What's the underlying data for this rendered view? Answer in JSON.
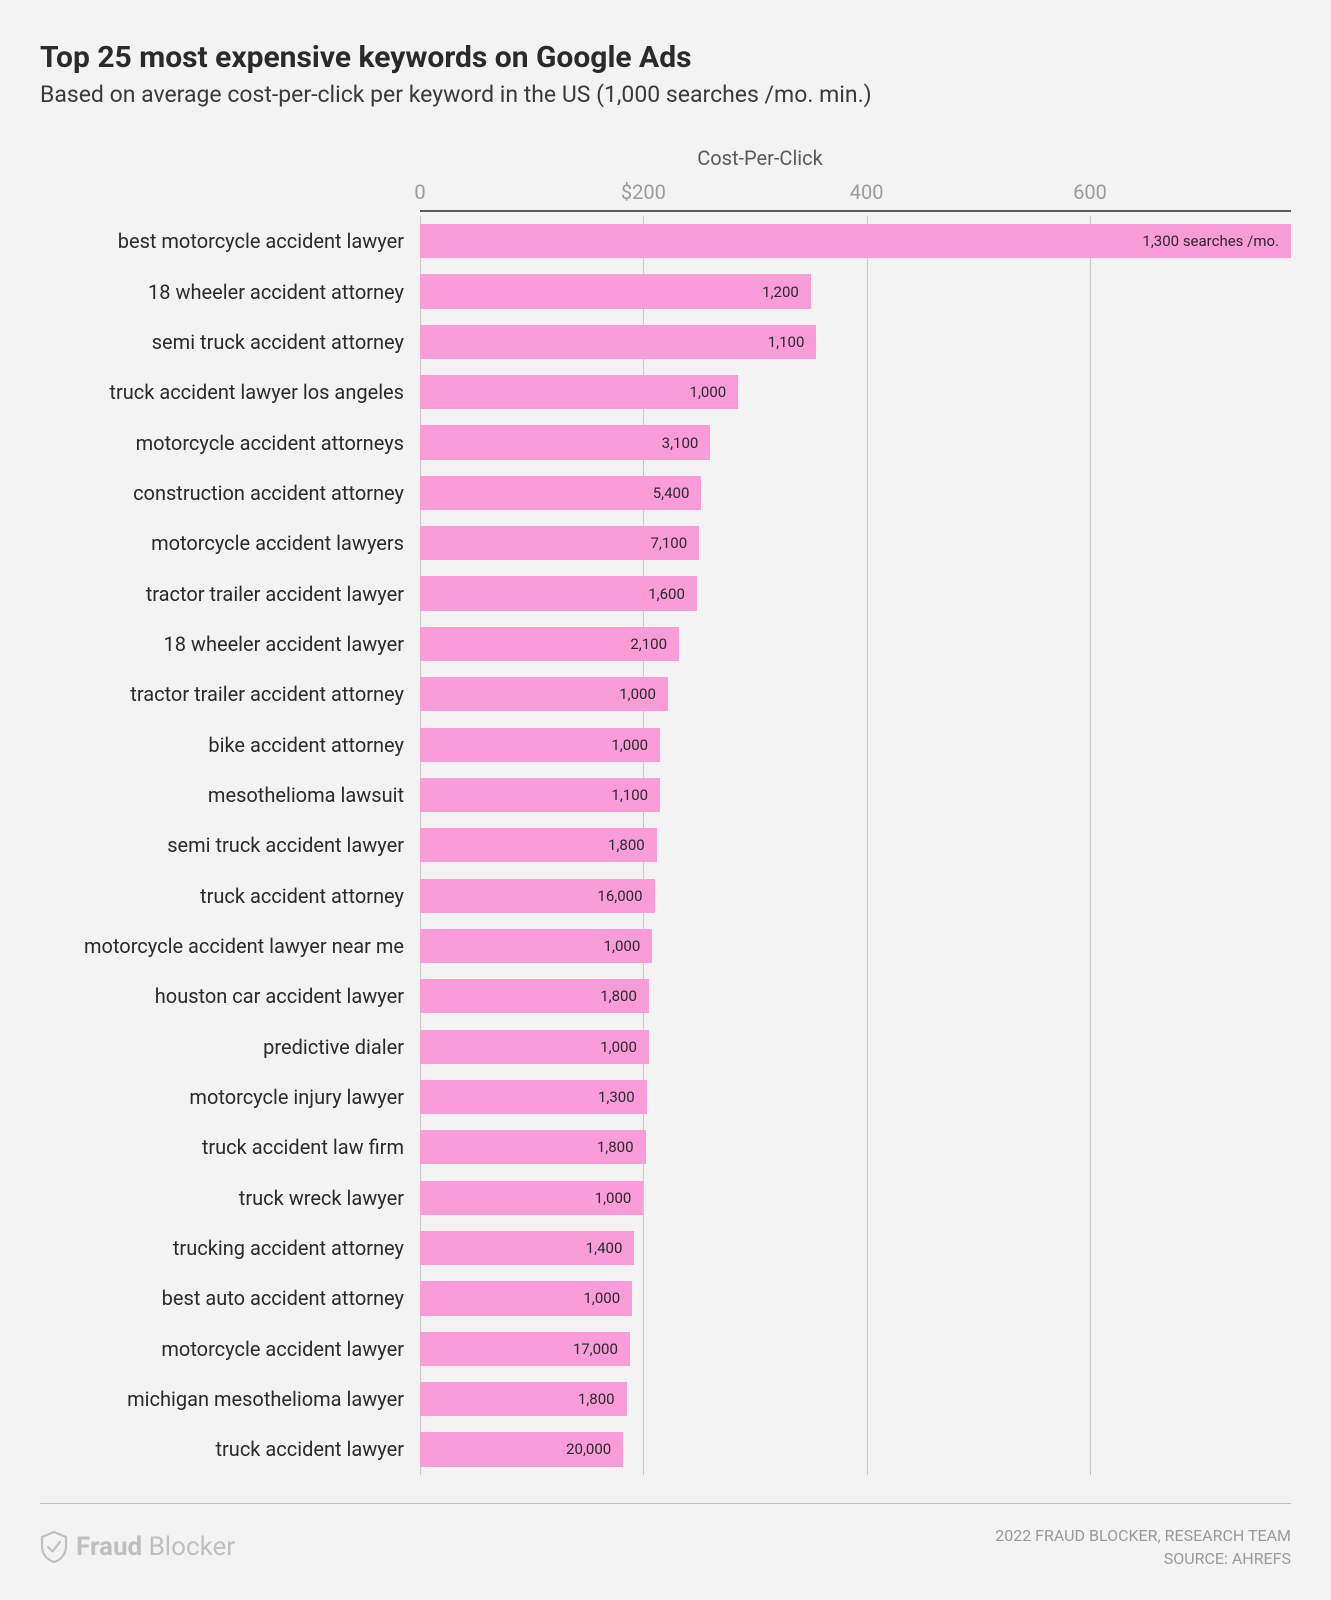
{
  "title": "Top 25 most expensive keywords on Google Ads",
  "subtitle": "Based on average cost-per-click per keyword in the US (1,000 searches /mo. min.)",
  "chart": {
    "type": "bar-horizontal",
    "axis_title": "Cost-Per-Click",
    "xlim": [
      0,
      780
    ],
    "ticks": [
      {
        "value": 0,
        "label": "0"
      },
      {
        "value": 200,
        "label": "$200"
      },
      {
        "value": 400,
        "label": "400"
      },
      {
        "value": 600,
        "label": "600"
      }
    ],
    "bar_color": "#f99cd8",
    "gridline_color": "#c8c8c8",
    "axis_line_color": "#5a5a5a",
    "bar_label_fontsize": 15,
    "bar_label_color": "#2a2a2a",
    "row_label_fontsize": 20,
    "row_label_color": "#2a2a2a",
    "first_bar_suffix": " searches /mo.",
    "rows": [
      {
        "label": "best motorcycle accident lawyer",
        "value": 780,
        "searches": "1,300"
      },
      {
        "label": "18 wheeler accident attorney",
        "value": 350,
        "searches": "1,200"
      },
      {
        "label": "semi truck accident attorney",
        "value": 355,
        "searches": "1,100"
      },
      {
        "label": "truck accident lawyer los angeles",
        "value": 285,
        "searches": "1,000"
      },
      {
        "label": "motorcycle accident attorneys",
        "value": 260,
        "searches": "3,100"
      },
      {
        "label": "construction accident attorney",
        "value": 252,
        "searches": "5,400"
      },
      {
        "label": "motorcycle accident lawyers",
        "value": 250,
        "searches": "7,100"
      },
      {
        "label": "tractor trailer accident lawyer",
        "value": 248,
        "searches": "1,600"
      },
      {
        "label": "18 wheeler accident lawyer",
        "value": 232,
        "searches": "2,100"
      },
      {
        "label": "tractor trailer accident attorney",
        "value": 222,
        "searches": "1,000"
      },
      {
        "label": "bike accident attorney",
        "value": 215,
        "searches": "1,000"
      },
      {
        "label": "mesothelioma lawsuit",
        "value": 215,
        "searches": "1,100"
      },
      {
        "label": "semi truck accident lawyer",
        "value": 212,
        "searches": "1,800"
      },
      {
        "label": "truck accident attorney",
        "value": 210,
        "searches": "16,000"
      },
      {
        "label": "motorcycle accident lawyer near me",
        "value": 208,
        "searches": "1,000"
      },
      {
        "label": "houston car accident lawyer",
        "value": 205,
        "searches": "1,800"
      },
      {
        "label": "predictive dialer",
        "value": 205,
        "searches": "1,000"
      },
      {
        "label": "motorcycle injury lawyer",
        "value": 203,
        "searches": "1,300"
      },
      {
        "label": "truck accident law firm",
        "value": 202,
        "searches": "1,800"
      },
      {
        "label": "truck wreck lawyer",
        "value": 200,
        "searches": "1,000"
      },
      {
        "label": "trucking accident attorney",
        "value": 192,
        "searches": "1,400"
      },
      {
        "label": "best auto accident attorney",
        "value": 190,
        "searches": "1,000"
      },
      {
        "label": "motorcycle accident lawyer",
        "value": 188,
        "searches": "17,000"
      },
      {
        "label": "michigan mesothelioma lawyer",
        "value": 185,
        "searches": "1,800"
      },
      {
        "label": "truck accident lawyer",
        "value": 182,
        "searches": "20,000"
      }
    ]
  },
  "footer": {
    "logo_bold": "Fraud",
    "logo_light": " Blocker",
    "credit_line_1": "2022 FRAUD BLOCKER, RESEARCH TEAM",
    "credit_line_2": "SOURCE: AHREFS"
  },
  "style": {
    "background_color": "#f3f3f3",
    "title_color": "#2a2a2a",
    "title_fontsize": 30,
    "subtitle_color": "#3a3a3a",
    "subtitle_fontsize": 23,
    "footer_text_color": "#9a9a9a",
    "logo_color": "#bfbfbf"
  }
}
